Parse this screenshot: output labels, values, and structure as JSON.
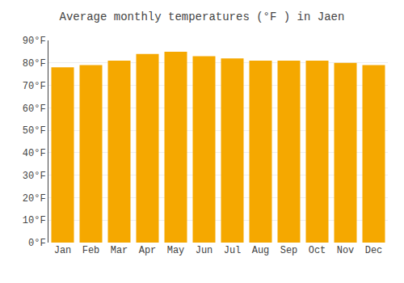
{
  "chart_data": {
    "type": "bar",
    "title": "Average monthly temperatures (°F ) in Jaen",
    "categories": [
      "Jan",
      "Feb",
      "Mar",
      "Apr",
      "May",
      "Jun",
      "Jul",
      "Aug",
      "Sep",
      "Oct",
      "Nov",
      "Dec"
    ],
    "values": [
      78,
      79,
      81,
      84,
      85,
      83,
      82,
      81,
      81,
      81,
      80,
      79
    ],
    "color": "#F5A800",
    "ylim": [
      0,
      90
    ],
    "yticks": [
      {
        "value": 0,
        "label": "0°F"
      },
      {
        "value": 10,
        "label": "10°F"
      },
      {
        "value": 20,
        "label": "20°F"
      },
      {
        "value": 30,
        "label": "30°F"
      },
      {
        "value": 40,
        "label": "40°F"
      },
      {
        "value": 50,
        "label": "50°F"
      },
      {
        "value": 60,
        "label": "60°F"
      },
      {
        "value": 70,
        "label": "70°F"
      },
      {
        "value": 80,
        "label": "80°F"
      },
      {
        "value": 90,
        "label": "90°F"
      }
    ],
    "grid": true
  }
}
